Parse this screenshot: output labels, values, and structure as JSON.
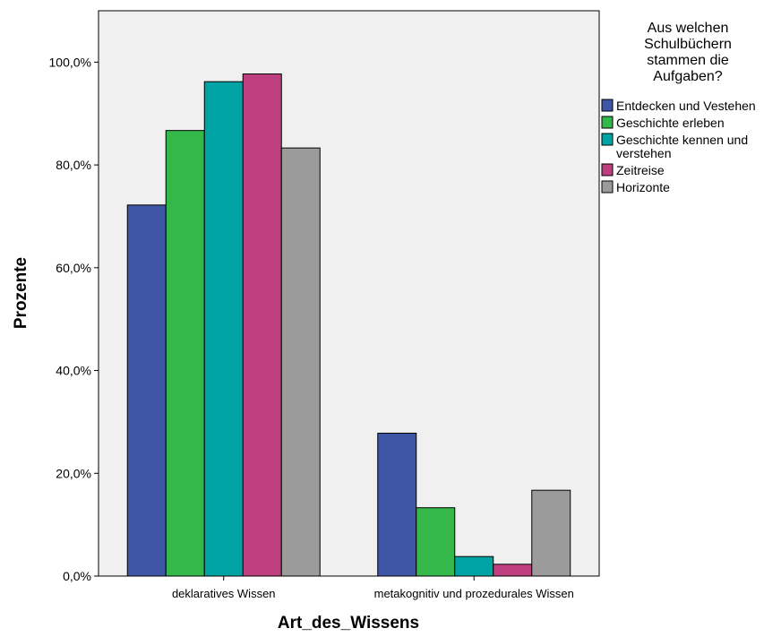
{
  "chart_data": {
    "type": "bar",
    "xlabel": "Art_des_Wissens",
    "ylabel": "Prozente",
    "ylim": [
      0,
      110
    ],
    "yticks": [
      0,
      20,
      40,
      60,
      80,
      100
    ],
    "ytick_labels": [
      "0,0%",
      "20,0%",
      "40,0%",
      "60,0%",
      "80,0%",
      "100,0%"
    ],
    "categories": [
      "deklaratives Wissen",
      "metakognitiv und prozedurales Wissen"
    ],
    "legend": {
      "title_lines": [
        "Aus  welchen",
        "Schulbüchern",
        "stammen die",
        "Aufgaben?"
      ],
      "position": "right"
    },
    "series": [
      {
        "name": "Entdecken und Vestehen",
        "label_lines": [
          "Entdecken und Vestehen"
        ],
        "color": "#3f56a6",
        "values": [
          72.2,
          27.8
        ]
      },
      {
        "name": "Geschichte erleben",
        "label_lines": [
          "Geschichte erleben"
        ],
        "color": "#34b84a",
        "values": [
          86.7,
          13.3
        ]
      },
      {
        "name": "Geschichte kennen und verstehen",
        "label_lines": [
          "Geschichte kennen und",
          "verstehen"
        ],
        "color": "#00a3a3",
        "values": [
          96.2,
          3.8
        ]
      },
      {
        "name": "Zeitreise",
        "label_lines": [
          "Zeitreise"
        ],
        "color": "#bd3f7e",
        "values": [
          97.7,
          2.3
        ]
      },
      {
        "name": "Horizonte",
        "label_lines": [
          "Horizonte"
        ],
        "color": "#9b9b9b",
        "values": [
          83.3,
          16.7
        ]
      }
    ],
    "plot_background": "#f0f0f0",
    "grid": false
  }
}
